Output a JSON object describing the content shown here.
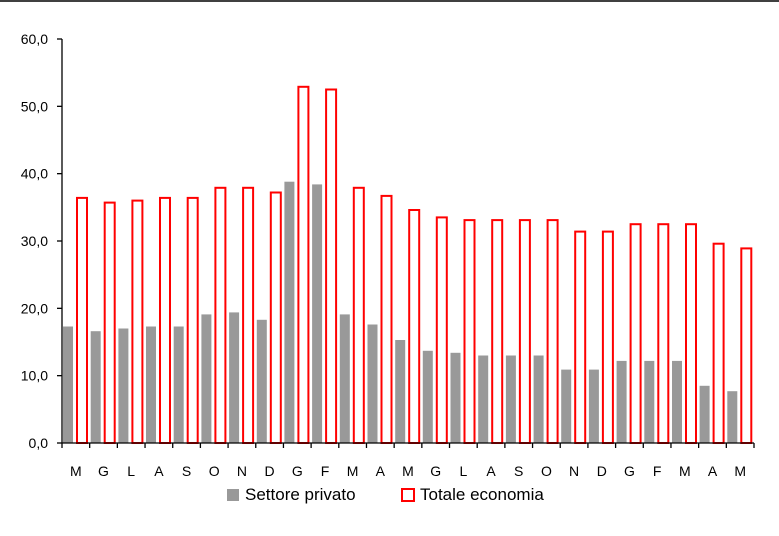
{
  "chart_data": {
    "type": "bar",
    "title": "",
    "xlabel": "",
    "ylabel": "",
    "ylim": [
      0,
      60
    ],
    "yticks": [
      "0,0",
      "10,0",
      "20,0",
      "30,0",
      "40,0",
      "50,0",
      "60,0"
    ],
    "grid": false,
    "legend_position": "bottom",
    "categories": [
      "M",
      "G",
      "L",
      "A",
      "S",
      "O",
      "N",
      "D",
      "G",
      "F",
      "M",
      "A",
      "M",
      "G",
      "L",
      "A",
      "S",
      "O",
      "N",
      "D",
      "G",
      "F",
      "M",
      "A",
      "M"
    ],
    "series": [
      {
        "name": "Settore privato",
        "style": "filled",
        "color": "#999999",
        "values": [
          17.3,
          16.6,
          17.0,
          17.3,
          17.3,
          19.1,
          19.4,
          18.3,
          38.8,
          38.4,
          19.1,
          17.6,
          15.3,
          13.7,
          13.4,
          13.0,
          13.0,
          13.0,
          10.9,
          10.9,
          12.2,
          12.2,
          12.2,
          8.5,
          7.7
        ]
      },
      {
        "name": "Totale economia",
        "style": "outline",
        "color": "#ff0000",
        "values": [
          36.4,
          35.7,
          36.0,
          36.4,
          36.4,
          37.9,
          37.9,
          37.2,
          52.9,
          52.5,
          37.9,
          36.7,
          34.6,
          33.5,
          33.1,
          33.1,
          33.1,
          33.1,
          31.4,
          31.4,
          32.5,
          32.5,
          32.5,
          29.6,
          28.9
        ]
      }
    ]
  }
}
